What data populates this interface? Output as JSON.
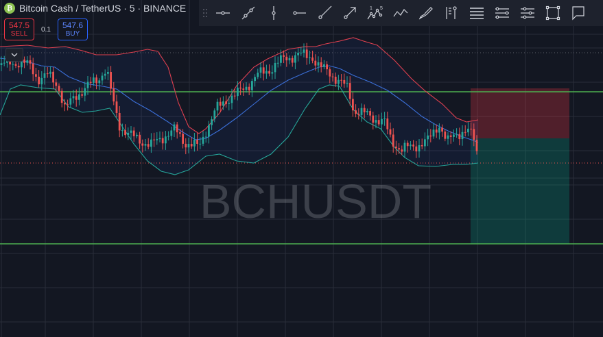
{
  "header": {
    "symbol_badge": "₿",
    "title": "Bitcoin Cash / TetherUS · 5 · BINANCE"
  },
  "trade": {
    "sell_price": "547.5",
    "sell_label": "SELL",
    "spread": "0.1",
    "buy_price": "547.6",
    "buy_label": "BUY"
  },
  "watermark": "BCHUSDT",
  "colors": {
    "background": "#131722",
    "up_candle": "#26a69a",
    "down_candle": "#ef5350",
    "bb_upper": "#e04050",
    "bb_basis": "#3b6fd8",
    "bb_lower": "#26a69a",
    "support_line": "#4caf50",
    "stop_zone": "#f23645",
    "target_zone": "#089981"
  },
  "toolbar": {
    "tools": [
      {
        "name": "horizontal-line-tool",
        "icon": "horizontal-line-icon"
      },
      {
        "name": "trend-line-tool",
        "icon": "trend-line-icon"
      },
      {
        "name": "vertical-line-tool",
        "icon": "vertical-line-icon"
      },
      {
        "name": "horizontal-ray-tool",
        "icon": "horizontal-ray-icon"
      },
      {
        "name": "ray-tool",
        "icon": "ray-icon"
      },
      {
        "name": "arrow-tool",
        "icon": "arrow-icon"
      },
      {
        "name": "elliott-wave-tool",
        "icon": "elliott-wave-icon"
      },
      {
        "name": "path-tool",
        "icon": "path-icon"
      },
      {
        "name": "brush-tool",
        "icon": "brush-icon"
      },
      {
        "name": "flag-mark-tool",
        "icon": "flag-icon"
      },
      {
        "name": "fib-retracement-tool",
        "icon": "fib-retracement-icon"
      },
      {
        "name": "parallel-channel-tool",
        "icon": "parallel-channel-icon"
      },
      {
        "name": "regression-trend-tool",
        "icon": "regression-trend-icon"
      },
      {
        "name": "rectangle-tool",
        "icon": "rectangle-icon"
      },
      {
        "name": "callout-tool",
        "icon": "callout-icon"
      }
    ],
    "elliott_labels": [
      "1",
      "5"
    ]
  }
}
